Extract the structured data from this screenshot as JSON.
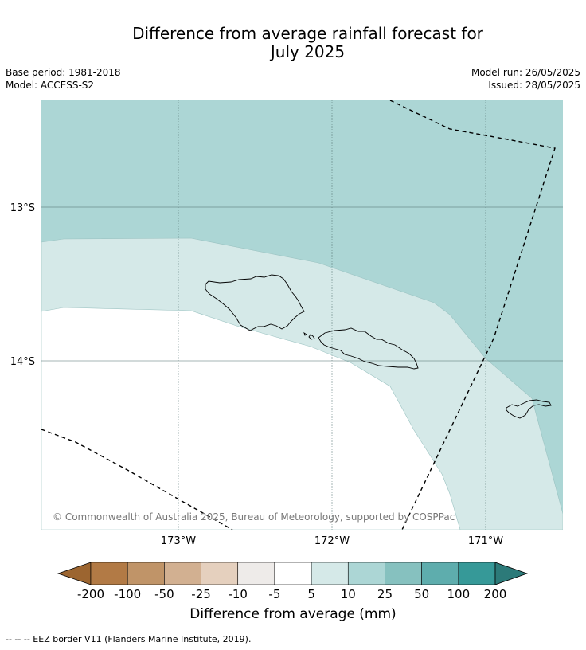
{
  "title_line1": "Difference from average rainfall forecast for",
  "title_line2": "July 2025",
  "base_period": "Base period: 1981-2018",
  "model": "Model: ACCESS-S2",
  "model_run": "Model run: 26/05/2025",
  "issued": "Issued: 28/05/2025",
  "copyright": "© Commonwealth of Australia 2025, Bureau of Meteorology, supported by COSPPac",
  "lat_labels": [
    "13°S",
    "14°S"
  ],
  "lon_labels": [
    "173°W",
    "172°W",
    "171°W"
  ],
  "colorbar": {
    "title": "Difference from average (mm)",
    "ticks": [
      "-200",
      "-100",
      "-50",
      "-25",
      "-10",
      "-5",
      "5",
      "10",
      "25",
      "50",
      "100",
      "200"
    ],
    "colors": [
      "#9c6530",
      "#b27a45",
      "#c09468",
      "#d2b091",
      "#e5d0be",
      "#eeebe9",
      "#ffffff",
      "#d5e9e8",
      "#acd6d5",
      "#86c1bf",
      "#5eadad",
      "#369998",
      "#2c7a79"
    ]
  },
  "fill_colors": {
    "category_10_25": "#acd6d5",
    "category_5_10": "#d5e9e8",
    "category_minus5_5": "#ffffff"
  },
  "legend_note": "--  --  -- EEZ border V11 (Flanders Marine Institute, 2019)."
}
